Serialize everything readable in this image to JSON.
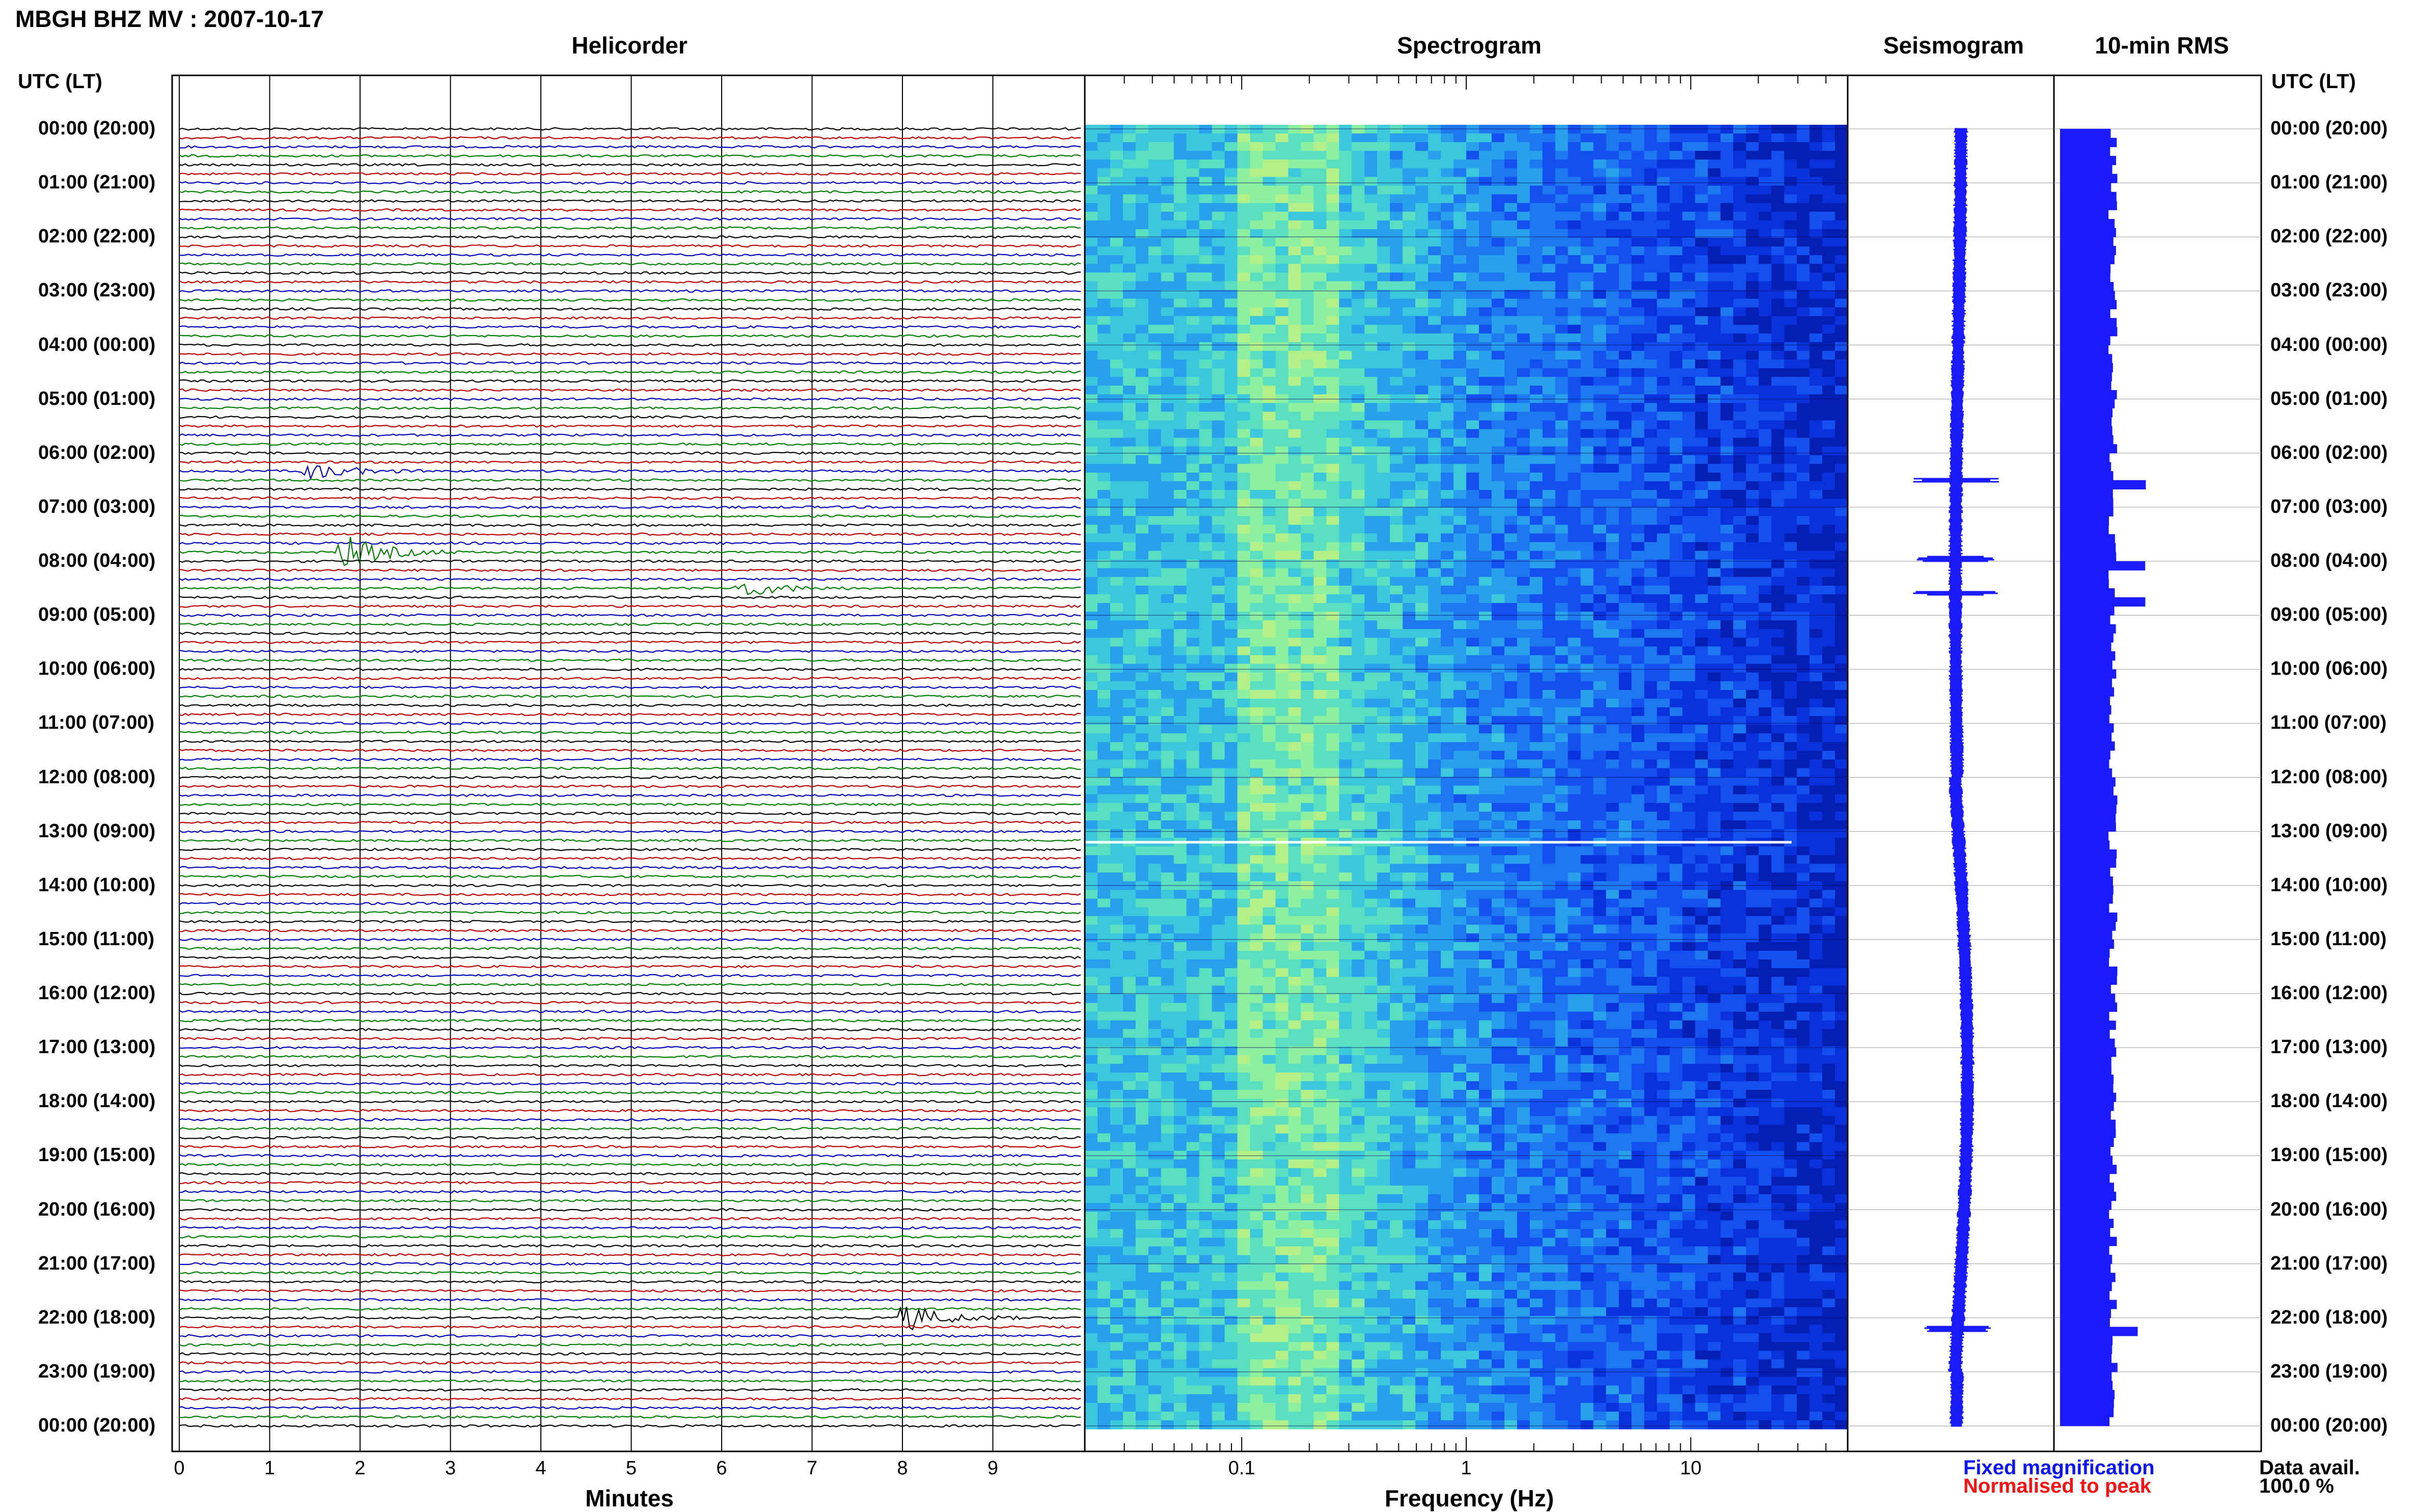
{
  "header": {
    "title": "MBGH BHZ MV : 2007-10-17"
  },
  "panels": {
    "helicorder": "Helicorder",
    "spectrogram": "Spectrogram",
    "seismogram": "Seismogram",
    "rms": "10-min RMS"
  },
  "axis_labels": {
    "utc_left": "UTC (LT)",
    "utc_right": "UTC (LT)",
    "minutes": "Minutes",
    "frequency": "Frequency (Hz)"
  },
  "legend": {
    "fixed": "Fixed magnification",
    "normalised": "Normalised to peak",
    "fixed_color": "#0a14ff",
    "normalised_color": "#ff1010"
  },
  "availability": {
    "label": "Data avail.",
    "value": "100.0 %"
  },
  "colors": {
    "trace_colors": [
      "#000000",
      "#c00000",
      "#0000c0",
      "#008000"
    ],
    "seismogram": "#1a1aff",
    "rms": "#1a1aff"
  },
  "chart_data": [
    {
      "type": "line",
      "name": "helicorder",
      "xlabel": "Minutes",
      "x_ticks": [
        "0",
        "1",
        "2",
        "3",
        "4",
        "5",
        "6",
        "7",
        "8",
        "9"
      ],
      "xlim": [
        0,
        10
      ],
      "row_labels": [
        "00:00 (20:00)",
        "01:00 (21:00)",
        "02:00 (22:00)",
        "03:00 (23:00)",
        "04:00 (00:00)",
        "05:00 (01:00)",
        "06:00 (02:00)",
        "07:00 (03:00)",
        "08:00 (04:00)",
        "09:00 (05:00)",
        "10:00 (06:00)",
        "11:00 (07:00)",
        "12:00 (08:00)",
        "13:00 (09:00)",
        "14:00 (10:00)",
        "15:00 (11:00)",
        "16:00 (12:00)",
        "17:00 (13:00)",
        "18:00 (14:00)",
        "19:00 (15:00)",
        "20:00 (16:00)",
        "21:00 (17:00)",
        "22:00 (18:00)",
        "23:00 (19:00)",
        "00:00 (20:00)"
      ],
      "rows_per_hour": 6,
      "events": [
        {
          "hour": 6.33,
          "minute": 1.5,
          "size": 1.0
        },
        {
          "hour": 7.83,
          "minute": 1.9,
          "size": 2.0
        },
        {
          "hour": 8.5,
          "minute": 6.3,
          "size": 1.0
        },
        {
          "hour": 22.0,
          "minute": 8.1,
          "size": 1.6
        }
      ]
    },
    {
      "type": "heatmap",
      "name": "spectrogram",
      "xlabel": "Frequency (Hz)",
      "x_scale": "log",
      "x_ticks": [
        "0.1",
        "1",
        "10"
      ],
      "xlim": [
        0.02,
        50
      ],
      "rows_hours": [
        0,
        24
      ]
    },
    {
      "type": "line",
      "name": "seismogram",
      "rows_hours": [
        0,
        24
      ],
      "spikes_hours": [
        6.5,
        7.95,
        8.6,
        22.2
      ]
    },
    {
      "type": "bar",
      "name": "rms",
      "orientation": "horizontal",
      "rows_hours": [
        0,
        24
      ],
      "peaks_hours": [
        6.5,
        8.0,
        8.6,
        22.1
      ]
    }
  ]
}
